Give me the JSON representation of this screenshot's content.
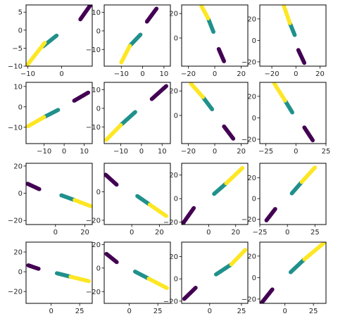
{
  "colors": {
    "purple": "#440154",
    "teal": "#21918c",
    "yellow": "#fde725"
  },
  "chart_data": [
    {
      "type": "scatter",
      "xlim": [
        -10.5,
        9
      ],
      "ylim": [
        -10,
        7
      ],
      "xticks": [
        -10,
        0
      ],
      "yticks": [
        -10,
        -5,
        0,
        5
      ],
      "series": [
        {
          "color": "purple",
          "start": [
            5.5,
            3
          ],
          "end": [
            8.5,
            7
          ]
        },
        {
          "color": "teal",
          "start": [
            -5.5,
            -4.5
          ],
          "end": [
            -1.5,
            -1.5
          ]
        },
        {
          "color": "yellow",
          "start": [
            -10,
            -9.5
          ],
          "end": [
            -5,
            -3.5
          ]
        }
      ]
    },
    {
      "type": "scatter",
      "xlim": [
        -18,
        13
      ],
      "ylim": [
        -19,
        14
      ],
      "xticks": [
        -10,
        0,
        10
      ],
      "yticks": [
        -10,
        0,
        10
      ],
      "series": [
        {
          "color": "purple",
          "start": [
            2,
            5
          ],
          "end": [
            6.5,
            12
          ]
        },
        {
          "color": "teal",
          "start": [
            -6,
            -8
          ],
          "end": [
            -1,
            -2
          ]
        },
        {
          "color": "yellow",
          "start": [
            -10,
            -17
          ],
          "end": [
            -6,
            -8
          ]
        }
      ]
    },
    {
      "type": "scatter",
      "xlim": [
        -25,
        25
      ],
      "ylim": [
        -23,
        27
      ],
      "xticks": [
        -20,
        0,
        20
      ],
      "yticks": [
        0,
        20
      ],
      "series": [
        {
          "color": "purple",
          "start": [
            3,
            -9
          ],
          "end": [
            7,
            -19
          ]
        },
        {
          "color": "teal",
          "start": [
            -5,
            16
          ],
          "end": [
            -1,
            5
          ]
        },
        {
          "color": "yellow",
          "start": [
            -10,
            26
          ],
          "end": [
            -5,
            16
          ]
        }
      ]
    },
    {
      "type": "scatter",
      "xlim": [
        -30,
        25
      ],
      "ylim": [
        -24,
        33
      ],
      "xticks": [
        -20,
        0,
        20
      ],
      "yticks": [
        -20,
        0,
        20
      ],
      "series": [
        {
          "color": "purple",
          "start": [
            2,
            -9
          ],
          "end": [
            7,
            -21
          ]
        },
        {
          "color": "teal",
          "start": [
            -5,
            16
          ],
          "end": [
            -1,
            5
          ]
        },
        {
          "color": "yellow",
          "start": [
            -10,
            32
          ],
          "end": [
            -5,
            16
          ]
        }
      ]
    },
    {
      "type": "scatter",
      "xlim": [
        -19,
        14
      ],
      "ylim": [
        -18,
        12
      ],
      "xticks": [
        -10,
        0,
        10
      ],
      "yticks": [
        -10,
        0,
        10
      ],
      "series": [
        {
          "color": "purple",
          "start": [
            5,
            3
          ],
          "end": [
            12,
            7
          ]
        },
        {
          "color": "teal",
          "start": [
            -10,
            -5
          ],
          "end": [
            -3,
            -1.5
          ]
        },
        {
          "color": "yellow",
          "start": [
            -18,
            -9.5
          ],
          "end": [
            -10,
            -5
          ]
        }
      ]
    },
    {
      "type": "scatter",
      "xlim": [
        -18,
        14
      ],
      "ylim": [
        -19,
        14
      ],
      "xticks": [
        -10,
        0,
        10
      ],
      "yticks": [
        -10,
        0,
        10
      ],
      "series": [
        {
          "color": "purple",
          "start": [
            5,
            5
          ],
          "end": [
            12,
            12
          ]
        },
        {
          "color": "teal",
          "start": [
            -10,
            -9
          ],
          "end": [
            -3,
            -2
          ]
        },
        {
          "color": "yellow",
          "start": [
            -17,
            -17
          ],
          "end": [
            -10,
            -9
          ]
        }
      ]
    },
    {
      "type": "scatter",
      "xlim": [
        -25,
        25
      ],
      "ylim": [
        -23,
        27
      ],
      "xticks": [
        -20,
        0,
        20
      ],
      "yticks": [
        0,
        20
      ],
      "series": [
        {
          "color": "purple",
          "start": [
            7,
            -9
          ],
          "end": [
            14,
            -19
          ]
        },
        {
          "color": "teal",
          "start": [
            -9,
            15
          ],
          "end": [
            -2,
            5
          ]
        },
        {
          "color": "yellow",
          "start": [
            -18,
            26
          ],
          "end": [
            -9,
            15
          ]
        }
      ]
    },
    {
      "type": "scatter",
      "xlim": [
        -30,
        25
      ],
      "ylim": [
        -24,
        33
      ],
      "xticks": [
        -25,
        0,
        25
      ],
      "yticks": [
        -20,
        0,
        20
      ],
      "series": [
        {
          "color": "purple",
          "start": [
            7,
            -9
          ],
          "end": [
            14,
            -21
          ]
        },
        {
          "color": "teal",
          "start": [
            -9,
            16
          ],
          "end": [
            -3,
            5
          ]
        },
        {
          "color": "yellow",
          "start": [
            -18,
            32
          ],
          "end": [
            -9,
            16
          ]
        }
      ]
    },
    {
      "type": "scatter",
      "xlim": [
        -20,
        25
      ],
      "ylim": [
        -23,
        22
      ],
      "xticks": [
        0,
        20
      ],
      "yticks": [
        -20,
        0,
        20
      ],
      "series": [
        {
          "color": "purple",
          "start": [
            -19,
            7
          ],
          "end": [
            -11,
            3
          ]
        },
        {
          "color": "teal",
          "start": [
            4,
            -1.5
          ],
          "end": [
            13,
            -5
          ]
        },
        {
          "color": "yellow",
          "start": [
            13,
            -5
          ],
          "end": [
            24,
            -9.5
          ]
        }
      ]
    },
    {
      "type": "scatter",
      "xlim": [
        -20,
        28
      ],
      "ylim": [
        -23,
        20
      ],
      "xticks": [
        0,
        20
      ],
      "yticks": [
        -20,
        0
      ],
      "series": [
        {
          "color": "purple",
          "start": [
            -19,
            12
          ],
          "end": [
            -11,
            5
          ]
        },
        {
          "color": "teal",
          "start": [
            4,
            -3
          ],
          "end": [
            13,
            -9
          ]
        },
        {
          "color": "yellow",
          "start": [
            13,
            -9
          ],
          "end": [
            25,
            -17
          ]
        }
      ]
    },
    {
      "type": "scatter",
      "xlim": [
        -20,
        29
      ],
      "ylim": [
        -22,
        30
      ],
      "xticks": [
        0,
        20
      ],
      "yticks": [
        -20,
        0,
        20
      ],
      "series": [
        {
          "color": "purple",
          "start": [
            -19,
            -21
          ],
          "end": [
            -11,
            -8
          ]
        },
        {
          "color": "teal",
          "start": [
            4,
            4
          ],
          "end": [
            13,
            13
          ]
        },
        {
          "color": "yellow",
          "start": [
            13,
            13
          ],
          "end": [
            25,
            26
          ]
        }
      ]
    },
    {
      "type": "scatter",
      "xlim": [
        -25,
        35
      ],
      "ylim": [
        -25,
        34
      ],
      "xticks": [
        -25,
        0,
        25
      ],
      "yticks": [
        -20,
        0,
        20
      ],
      "series": [
        {
          "color": "purple",
          "start": [
            -19,
            -21
          ],
          "end": [
            -11,
            -10
          ]
        },
        {
          "color": "teal",
          "start": [
            4,
            5
          ],
          "end": [
            13,
            16
          ]
        },
        {
          "color": "yellow",
          "start": [
            13,
            16
          ],
          "end": [
            25,
            30
          ]
        }
      ]
    },
    {
      "type": "scatter",
      "xlim": [
        -22,
        36
      ],
      "ylim": [
        -32,
        30
      ],
      "xticks": [
        0,
        25
      ],
      "yticks": [
        -20,
        0,
        20
      ],
      "series": [
        {
          "color": "purple",
          "start": [
            -20,
            6.5
          ],
          "end": [
            -11,
            3
          ]
        },
        {
          "color": "teal",
          "start": [
            5,
            -1.5
          ],
          "end": [
            17,
            -5
          ]
        },
        {
          "color": "yellow",
          "start": [
            17,
            -5
          ],
          "end": [
            33,
            -9.5
          ]
        }
      ]
    },
    {
      "type": "scatter",
      "xlim": [
        -22,
        36
      ],
      "ylim": [
        -30,
        22
      ],
      "xticks": [
        0,
        25
      ],
      "yticks": [
        -20,
        0,
        20
      ],
      "series": [
        {
          "color": "purple",
          "start": [
            -20,
            12
          ],
          "end": [
            -11,
            5
          ]
        },
        {
          "color": "teal",
          "start": [
            5,
            -3
          ],
          "end": [
            17,
            -9
          ]
        },
        {
          "color": "yellow",
          "start": [
            17,
            -9
          ],
          "end": [
            33,
            -17
          ]
        }
      ]
    },
    {
      "type": "scatter",
      "xlim": [
        -22,
        30
      ],
      "ylim": [
        -22,
        33
      ],
      "xticks": [
        0,
        25
      ],
      "yticks": [
        -20,
        0,
        20
      ],
      "series": [
        {
          "color": "purple",
          "start": [
            -20,
            -18
          ],
          "end": [
            -11,
            -8
          ]
        },
        {
          "color": "teal",
          "start": [
            5,
            4
          ],
          "end": [
            17,
            13
          ]
        },
        {
          "color": "yellow",
          "start": [
            17,
            13
          ],
          "end": [
            28,
            26
          ]
        }
      ]
    },
    {
      "type": "scatter",
      "xlim": [
        -22,
        36
      ],
      "ylim": [
        -24,
        33
      ],
      "xticks": [
        0,
        25
      ],
      "yticks": [
        -20,
        0,
        20
      ],
      "series": [
        {
          "color": "purple",
          "start": [
            -20,
            -23
          ],
          "end": [
            -11,
            -11
          ]
        },
        {
          "color": "teal",
          "start": [
            5,
            5
          ],
          "end": [
            17,
            17
          ]
        },
        {
          "color": "yellow",
          "start": [
            17,
            17
          ],
          "end": [
            34,
            32
          ]
        }
      ]
    }
  ]
}
